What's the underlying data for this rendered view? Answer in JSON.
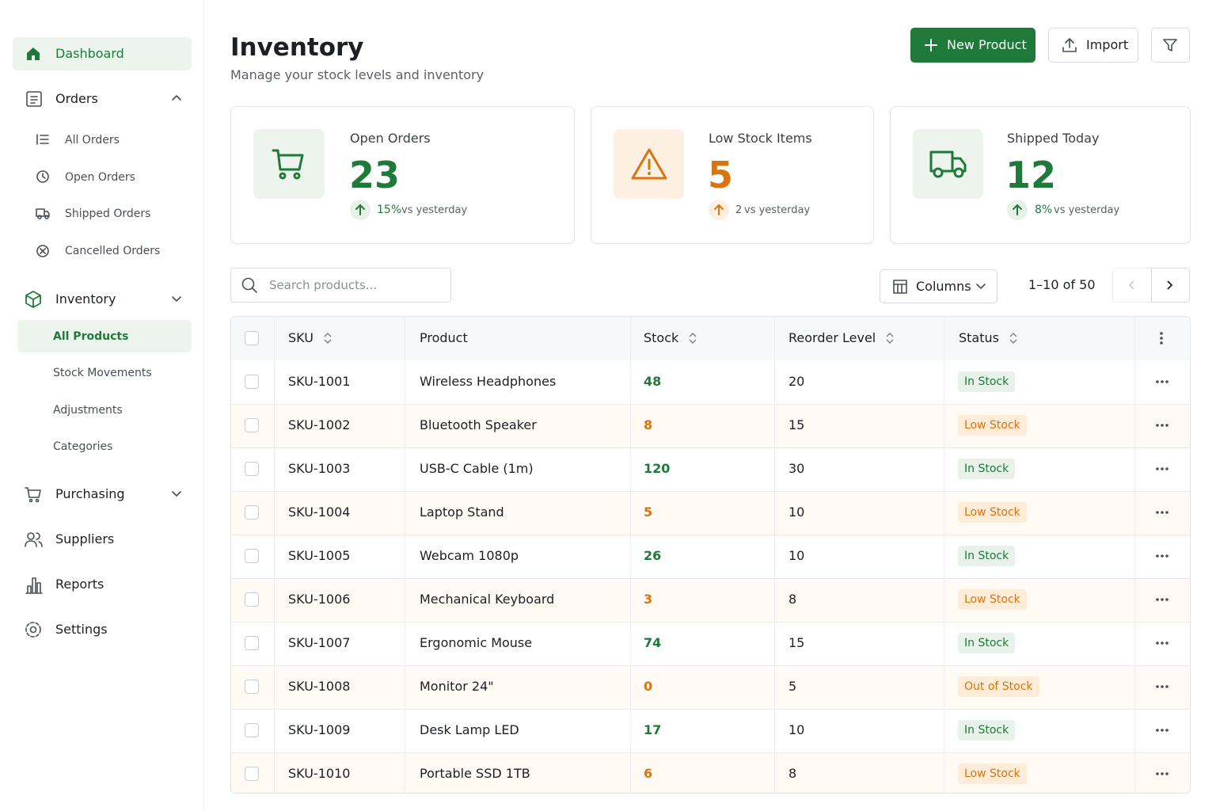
{
  "sidebar": {
    "dashboard": "Dashboard",
    "orders": {
      "label": "Orders",
      "items": [
        "All Orders",
        "Open Orders",
        "Shipped Orders",
        "Cancelled Orders"
      ]
    },
    "inventory": {
      "label": "Inventory",
      "items": [
        "All Products",
        "Stock Movements",
        "Adjustments",
        "Categories"
      ]
    },
    "more": [
      "Purchasing",
      "Suppliers",
      "Reports",
      "Settings"
    ]
  },
  "header": {
    "title": "Inventory",
    "subtitle": "Manage your stock levels and inventory",
    "new_product": "New Product",
    "import": "Import"
  },
  "cards": [
    {
      "label": "Open Orders",
      "value": 23,
      "delta": "15%",
      "note": "vs yesterday"
    },
    {
      "label": "Low Stock Items",
      "value": 5,
      "delta": 2,
      "note": "vs yesterday"
    },
    {
      "label": "Shipped Today",
      "value": 12,
      "delta": "8%",
      "note": "vs yesterday"
    }
  ],
  "toolbar": {
    "search_placeholder": "Search products...",
    "columns": "Columns",
    "pagination": "1–10 of 50"
  },
  "table": {
    "headers": [
      "SKU",
      "Product",
      "Stock",
      "Reorder Level",
      "Status"
    ],
    "rows": [
      [
        "SKU-1001",
        "Wireless Headphones",
        48,
        20,
        "In Stock"
      ],
      [
        "SKU-1002",
        "Bluetooth Speaker",
        8,
        15,
        "Low Stock"
      ],
      [
        "SKU-1003",
        "USB-C Cable (1m)",
        120,
        30,
        "In Stock"
      ],
      [
        "SKU-1004",
        "Laptop Stand",
        5,
        10,
        "Low Stock"
      ],
      [
        "SKU-1005",
        "Webcam 1080p",
        26,
        10,
        "In Stock"
      ],
      [
        "SKU-1006",
        "Mechanical Keyboard",
        3,
        8,
        "Low Stock"
      ],
      [
        "SKU-1007",
        "Ergonomic Mouse",
        74,
        15,
        "In Stock"
      ],
      [
        "SKU-1008",
        "Monitor 24\"",
        0,
        5,
        "Out of Stock"
      ],
      [
        "SKU-1009",
        "Desk Lamp LED",
        17,
        10,
        "In Stock"
      ],
      [
        "SKU-1010",
        "Portable SSD 1TB",
        6,
        8,
        "Low Stock"
      ]
    ]
  }
}
